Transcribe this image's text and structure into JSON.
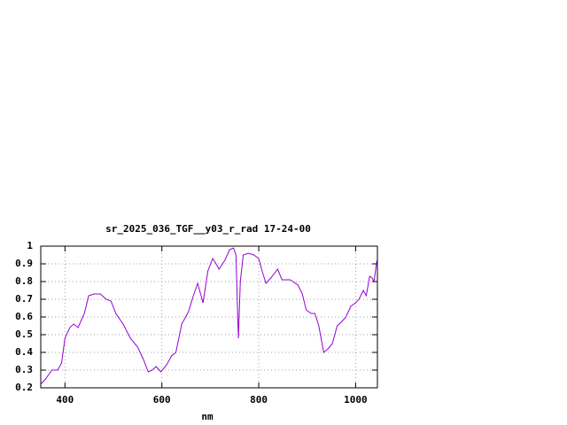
{
  "chart_data": {
    "type": "line",
    "title": "sr_2025_036_TGF__y03_r_rad 17-24-00",
    "xlabel": "nm",
    "x": [
      350,
      360,
      373,
      385,
      393,
      400,
      410,
      418,
      427,
      440,
      449,
      460,
      473,
      485,
      495,
      505,
      520,
      535,
      550,
      562,
      572,
      580,
      588,
      598,
      610,
      620,
      629,
      641,
      655,
      665,
      674,
      685,
      695,
      705,
      712,
      718,
      730,
      740,
      748,
      753,
      758,
      762,
      768,
      779,
      790,
      800,
      808,
      815,
      825,
      839,
      848,
      865,
      881,
      890,
      898,
      908,
      916,
      924,
      934,
      943,
      952,
      962,
      970,
      980,
      990,
      1000,
      1007,
      1016,
      1022,
      1029,
      1034,
      1038,
      1041,
      1044
    ],
    "series": [
      {
        "color": "#9400d3",
        "values": [
          0.22,
          0.25,
          0.3,
          0.3,
          0.34,
          0.48,
          0.54,
          0.56,
          0.54,
          0.62,
          0.72,
          0.73,
          0.73,
          0.7,
          0.69,
          0.62,
          0.56,
          0.48,
          0.43,
          0.36,
          0.29,
          0.3,
          0.32,
          0.29,
          0.33,
          0.38,
          0.4,
          0.56,
          0.63,
          0.72,
          0.79,
          0.68,
          0.86,
          0.93,
          0.9,
          0.87,
          0.92,
          0.98,
          0.99,
          0.95,
          0.48,
          0.8,
          0.95,
          0.96,
          0.95,
          0.93,
          0.85,
          0.79,
          0.82,
          0.87,
          0.81,
          0.81,
          0.78,
          0.73,
          0.64,
          0.62,
          0.62,
          0.55,
          0.4,
          0.42,
          0.45,
          0.55,
          0.57,
          0.6,
          0.66,
          0.68,
          0.7,
          0.75,
          0.72,
          0.83,
          0.82,
          0.8,
          0.86,
          0.92
        ]
      }
    ],
    "xlim": [
      350,
      1045
    ],
    "ylim": [
      0.2,
      1
    ],
    "xticks": [
      400,
      600,
      800,
      1000
    ],
    "yticks": [
      0.2,
      0.3,
      0.4,
      0.5,
      0.6,
      0.7,
      0.8,
      0.9,
      1
    ],
    "grid": true
  }
}
